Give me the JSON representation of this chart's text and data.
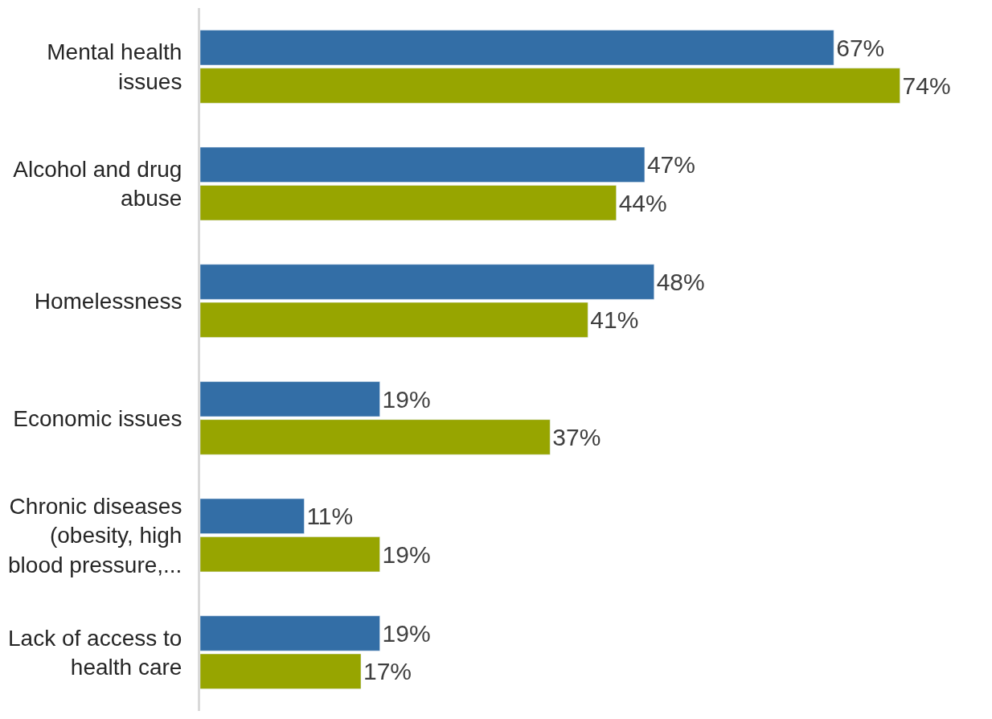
{
  "chart_data": {
    "type": "bar",
    "orientation": "horizontal",
    "categories": [
      "Mental health issues",
      "Alcohol and drug abuse",
      "Homelessness",
      "Economic issues",
      "Chronic diseases (obesity, high blood pressure,...",
      "Lack of access to health care"
    ],
    "series": [
      {
        "color": "#336ea6",
        "values": [
          67,
          47,
          48,
          19,
          11,
          19
        ],
        "value_labels": [
          "67%",
          "47%",
          "48%",
          "19%",
          "11%",
          "19%"
        ]
      },
      {
        "color": "#97a500",
        "values": [
          74,
          44,
          41,
          37,
          19,
          17
        ],
        "value_labels": [
          "74%",
          "44%",
          "41%",
          "37%",
          "19%",
          "17%"
        ]
      }
    ],
    "tick_labels": "y"
  }
}
